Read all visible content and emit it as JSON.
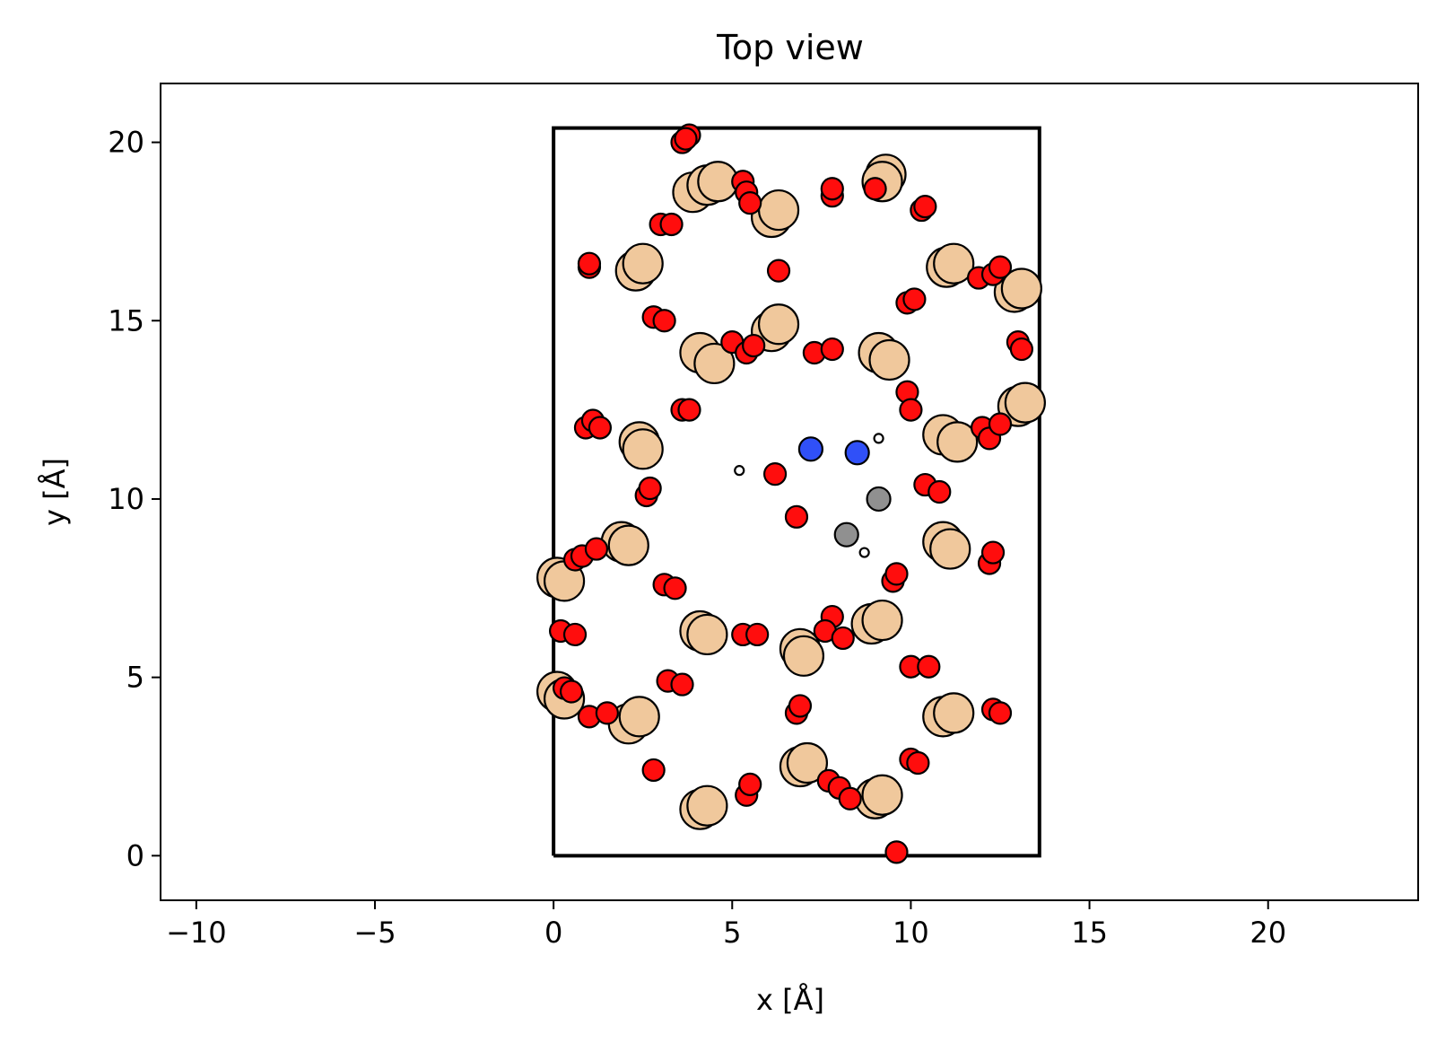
{
  "chart_data": {
    "type": "scatter",
    "title": "Top view",
    "xlabel": "x [Å]",
    "ylabel": "y [Å]",
    "xlim": [
      -11,
      24.2
    ],
    "ylim": [
      -1.25,
      21.65
    ],
    "xticks": [
      -10,
      -5,
      0,
      5,
      10,
      15,
      20
    ],
    "xtick_labels": [
      "−10",
      "−5",
      "0",
      "5",
      "10",
      "15",
      "20"
    ],
    "yticks": [
      0,
      5,
      10,
      15,
      20
    ],
    "ytick_labels": [
      "0",
      "5",
      "10",
      "15",
      "20"
    ],
    "grid": false,
    "cell": {
      "x": [
        0,
        13.6,
        13.6,
        0,
        0
      ],
      "y": [
        0,
        0,
        20.4,
        20.4,
        0
      ]
    },
    "colors": {
      "tan": "#f0c89c",
      "red": "#ff0d0d",
      "blue": "#3050f8",
      "gray": "#909090",
      "white": "#ffffff",
      "edge": "#000000"
    },
    "series": [
      {
        "color": "tan",
        "size": "large",
        "x": [
          3.9,
          4.3,
          4.6,
          6.1,
          6.3,
          9.3,
          9.2,
          2.3,
          2.5,
          11.0,
          11.2,
          12.9,
          13.1,
          4.1,
          4.5,
          6.1,
          6.3,
          9.1,
          9.4,
          2.4,
          2.5,
          10.9,
          11.3,
          13.0,
          13.2,
          1.9,
          2.1,
          0.1,
          0.3,
          10.9,
          11.1,
          4.1,
          4.3,
          6.9,
          7.0,
          8.9,
          9.2,
          0.1,
          0.3,
          2.1,
          2.4,
          10.9,
          11.2,
          4.1,
          4.3,
          6.9,
          7.1,
          9.0,
          9.2
        ],
        "y": [
          18.6,
          18.8,
          18.9,
          17.9,
          18.1,
          19.1,
          18.9,
          16.4,
          16.6,
          16.5,
          16.6,
          15.8,
          15.9,
          14.1,
          13.8,
          14.7,
          14.9,
          14.1,
          13.9,
          11.6,
          11.4,
          11.8,
          11.6,
          12.6,
          12.7,
          8.8,
          8.7,
          7.8,
          7.7,
          8.8,
          8.6,
          6.3,
          6.2,
          5.8,
          5.6,
          6.5,
          6.6,
          4.6,
          4.4,
          3.7,
          3.9,
          3.9,
          4.0,
          1.3,
          1.4,
          2.5,
          2.6,
          1.6,
          1.7
        ]
      },
      {
        "color": "red",
        "size": "medium",
        "x": [
          3.6,
          3.8,
          3.7,
          5.3,
          5.4,
          5.5,
          7.8,
          7.8,
          9.0,
          10.3,
          10.4,
          3.0,
          3.3,
          1.0,
          1.0,
          6.3,
          11.9,
          12.3,
          12.5,
          2.8,
          3.1,
          9.9,
          10.1,
          5.0,
          5.4,
          5.6,
          7.3,
          7.8,
          13.0,
          13.1,
          3.6,
          3.8,
          9.9,
          10.0,
          0.9,
          1.1,
          1.3,
          12.0,
          12.2,
          12.5,
          2.6,
          2.7,
          6.2,
          10.4,
          10.8,
          6.8,
          0.6,
          0.8,
          1.2,
          9.5,
          9.6,
          12.2,
          12.3,
          3.1,
          3.4,
          0.2,
          0.6,
          5.3,
          5.7,
          7.8,
          7.6,
          8.1,
          10.0,
          10.5,
          0.3,
          0.5,
          1.0,
          1.5,
          3.2,
          3.6,
          6.8,
          6.9,
          12.3,
          12.5,
          2.8,
          5.4,
          5.5,
          7.7,
          8.0,
          8.3,
          10.0,
          10.2,
          9.6
        ],
        "y": [
          20.0,
          20.2,
          20.1,
          18.9,
          18.6,
          18.3,
          18.5,
          18.7,
          18.7,
          18.1,
          18.2,
          17.7,
          17.7,
          16.5,
          16.6,
          16.4,
          16.2,
          16.3,
          16.5,
          15.1,
          15.0,
          15.5,
          15.6,
          14.4,
          14.1,
          14.3,
          14.1,
          14.2,
          14.4,
          14.2,
          12.5,
          12.5,
          13.0,
          12.5,
          12.0,
          12.2,
          12.0,
          12.0,
          11.7,
          12.1,
          10.1,
          10.3,
          10.7,
          10.4,
          10.2,
          9.5,
          8.3,
          8.4,
          8.6,
          7.7,
          7.9,
          8.2,
          8.5,
          7.6,
          7.5,
          6.3,
          6.2,
          6.2,
          6.2,
          6.7,
          6.3,
          6.1,
          5.3,
          5.3,
          4.7,
          4.6,
          3.9,
          4.0,
          4.9,
          4.8,
          4.0,
          4.2,
          4.1,
          4.0,
          2.4,
          1.7,
          2.0,
          2.1,
          1.9,
          1.6,
          2.7,
          2.6,
          0.1
        ]
      },
      {
        "color": "blue",
        "size": "small",
        "x": [
          7.2,
          8.5
        ],
        "y": [
          11.4,
          11.3
        ]
      },
      {
        "color": "gray",
        "size": "small",
        "x": [
          9.1,
          8.2
        ],
        "y": [
          10.0,
          9.0
        ]
      },
      {
        "color": "white",
        "size": "tiny",
        "x": [
          5.2,
          9.1,
          8.7
        ],
        "y": [
          10.8,
          11.7,
          8.5
        ]
      }
    ]
  }
}
